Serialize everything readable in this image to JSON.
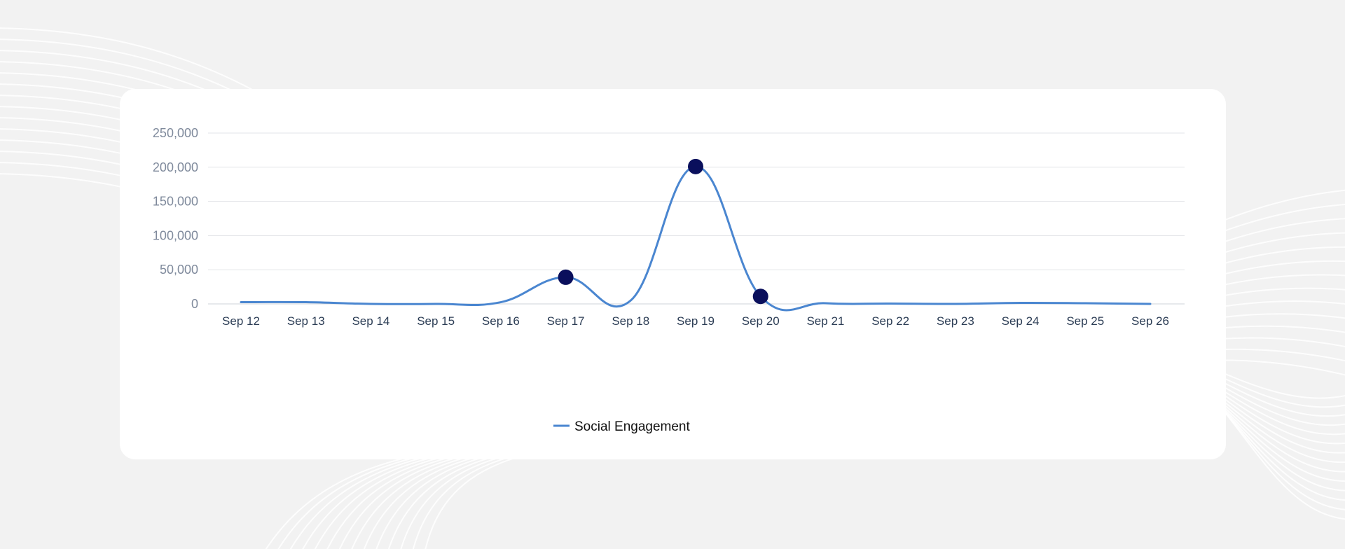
{
  "chart_data": {
    "type": "line",
    "title": "",
    "xlabel": "",
    "ylabel": "",
    "categories": [
      "Sep 12",
      "Sep 13",
      "Sep 14",
      "Sep 15",
      "Sep 16",
      "Sep 17",
      "Sep 18",
      "Sep 19",
      "Sep 20",
      "Sep 21",
      "Sep 22",
      "Sep 23",
      "Sep 24",
      "Sep 25",
      "Sep 26"
    ],
    "ylim": [
      0,
      250000
    ],
    "yticks": [
      0,
      50000,
      100000,
      150000,
      200000,
      250000
    ],
    "ytick_labels": [
      "0",
      "50,000",
      "100,000",
      "150,000",
      "200,000",
      "250,000"
    ],
    "grid": true,
    "legend_position": "bottom-center",
    "series": [
      {
        "name": "Social Engagement",
        "color": "#4a86d0",
        "values": [
          2500,
          2500,
          0,
          0,
          2500,
          39000,
          5000,
          201000,
          11000,
          1000,
          500,
          0,
          1500,
          1000,
          0
        ],
        "highlighted_points": [
          5,
          7,
          8
        ],
        "highlight_color": "#0a0f5c"
      }
    ]
  }
}
